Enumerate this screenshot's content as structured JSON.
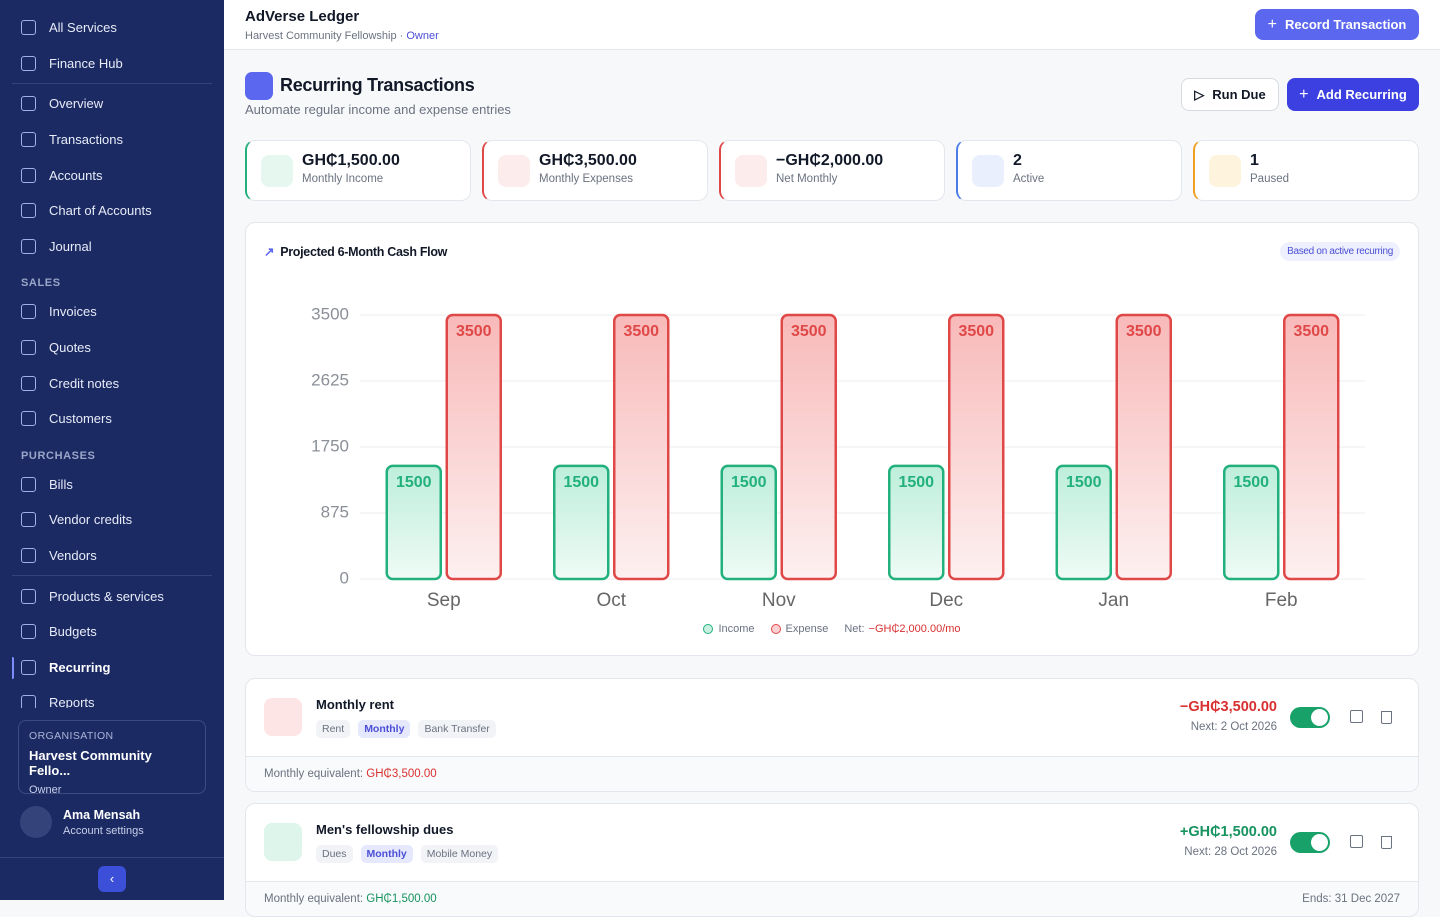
{
  "sidebar": {
    "top": [
      "All Services",
      "Finance Hub"
    ],
    "main": [
      "Overview",
      "Transactions",
      "Accounts",
      "Chart of Accounts",
      "Journal"
    ],
    "sales": {
      "title": "SALES",
      "items": [
        "Invoices",
        "Quotes",
        "Credit notes",
        "Customers"
      ]
    },
    "purchases": {
      "title": "PURCHASES",
      "items": [
        "Bills",
        "Vendor credits",
        "Vendors"
      ]
    },
    "more": [
      "Products & services",
      "Budgets",
      "Recurring",
      "Reports"
    ],
    "organisation": {
      "label": "ORGANISATION",
      "name": "Harvest Community Fello...",
      "role": "Owner"
    },
    "user": {
      "name": "Ama Mensah",
      "link": "Account settings"
    }
  },
  "header": {
    "app": "AdVerse Ledger",
    "org": "Harvest Community Fellowship · ",
    "role": "Owner",
    "button": "Record Transaction"
  },
  "page": {
    "title": "Recurring Transactions",
    "subtitle": "Automate regular income and expense entries",
    "run_button": "Run Due",
    "add_button": "Add Recurring"
  },
  "stats": [
    {
      "value": "GH₵1,500.00",
      "label": "Monthly Income"
    },
    {
      "value": "GH₵3,500.00",
      "label": "Monthly Expenses"
    },
    {
      "value": "−GH₵2,000.00",
      "label": "Net Monthly"
    },
    {
      "value": "2",
      "label": "Active"
    },
    {
      "value": "1",
      "label": "Paused"
    }
  ],
  "chart_data": {
    "type": "bar",
    "title": "Projected 6-Month Cash Flow",
    "badge": "Based on active recurring",
    "categories": [
      "Sep",
      "Oct",
      "Nov",
      "Dec",
      "Jan",
      "Feb"
    ],
    "series": [
      {
        "name": "Income",
        "color": "#22b07d",
        "values": [
          1500,
          1500,
          1500,
          1500,
          1500,
          1500
        ]
      },
      {
        "name": "Expense",
        "color": "#e04848",
        "values": [
          3500,
          3500,
          3500,
          3500,
          3500,
          3500
        ]
      }
    ],
    "ylim": [
      0,
      3500
    ],
    "yticks": [
      0,
      875,
      1750,
      2625,
      3500
    ],
    "grid": true,
    "net_label": "Net:",
    "net_value": "−GH₵2,000.00/mo"
  },
  "transactions": [
    {
      "name": "Monthly rent",
      "tags": [
        "Rent",
        "Monthly",
        "Bank Transfer"
      ],
      "amount": "−GH₵3,500.00",
      "next": "Next: 2 Oct 2026",
      "equiv_label": "Monthly equivalent: ",
      "equiv_value": "GH₵3,500.00"
    },
    {
      "name": "Men's fellowship dues",
      "tags": [
        "Dues",
        "Monthly",
        "Mobile Money"
      ],
      "amount": "+GH₵1,500.00",
      "next": "Next: 28 Oct 2026",
      "equiv_label": "Monthly equivalent: ",
      "equiv_value": "GH₵1,500.00",
      "ends": "Ends: 31 Dec 2027"
    }
  ]
}
